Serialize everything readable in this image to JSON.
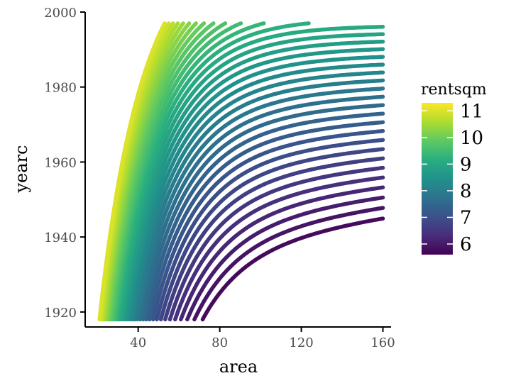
{
  "chart_data": {
    "type": "contour",
    "title": "",
    "xlabel": "area",
    "ylabel": "yearc",
    "xlim": [
      14,
      164
    ],
    "ylim": [
      1916,
      2000
    ],
    "x_ticks": [
      40,
      80,
      120,
      160
    ],
    "y_ticks": [
      1920,
      1940,
      1960,
      1980,
      2000
    ],
    "x_tick_labels": [
      "40",
      "80",
      "120",
      "160"
    ],
    "y_tick_labels": [
      "1920",
      "1940",
      "1960",
      "1980",
      "2000"
    ],
    "grid": false,
    "colorscale": "viridis",
    "legend": {
      "title": "rentsqm",
      "position": "right",
      "labels": [
        "11",
        "10",
        "9",
        "8",
        "7",
        "6"
      ],
      "values": [
        11,
        10,
        9,
        8,
        7,
        6
      ],
      "range": [
        5.6,
        11.3
      ]
    },
    "contour_levels_approx": {
      "min": 5.75,
      "max": 11.1,
      "step": 0.15
    },
    "data_domain": {
      "x_range": [
        20,
        160
      ],
      "y_range": [
        1918,
        1997
      ]
    }
  }
}
